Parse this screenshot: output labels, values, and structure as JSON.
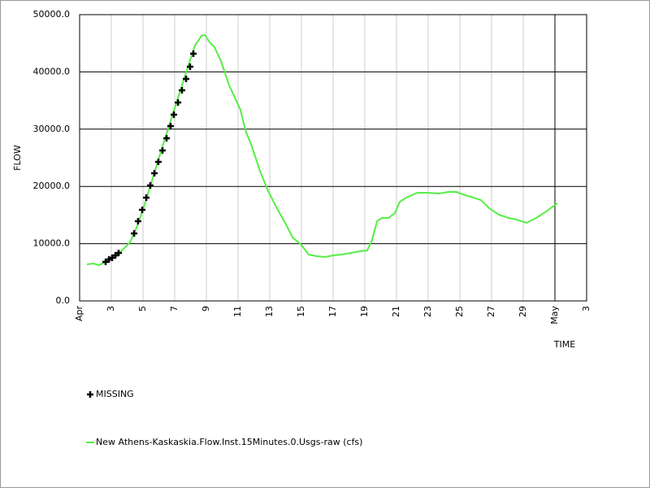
{
  "chart_data": {
    "type": "line",
    "y_label": "FLOW",
    "x_label": "TIME",
    "xlim": [
      1,
      33
    ],
    "xticks": [
      {
        "value": 1,
        "label": "Apr"
      },
      3,
      5,
      7,
      9,
      11,
      13,
      15,
      17,
      19,
      21,
      23,
      25,
      27,
      29,
      {
        "value": 31,
        "label": "May"
      },
      {
        "value": 33,
        "label": "3"
      }
    ],
    "ylim": [
      0,
      50000
    ],
    "yticks": [
      {
        "value": 0,
        "label": "0.0"
      },
      {
        "value": 10000,
        "label": "10000.0"
      },
      {
        "value": 20000,
        "label": "20000.0"
      },
      {
        "value": 30000,
        "label": "30000.0"
      },
      {
        "value": 40000,
        "label": "40000.0"
      },
      {
        "value": 50000,
        "label": "50000.0"
      }
    ],
    "grid": true,
    "series": [
      {
        "name": "MISSING",
        "type": "scatter",
        "color": "#000000",
        "x": [
          2.64,
          2.85,
          3.05,
          3.26,
          3.46,
          4.44,
          4.69,
          4.95,
          5.21,
          5.46,
          5.72,
          5.97,
          6.23,
          6.49,
          6.74,
          6.95,
          7.21,
          7.46,
          7.72,
          7.97,
          8.18
        ],
        "values": [
          6820,
          7240,
          7530,
          7950,
          8380,
          11790,
          13920,
          15910,
          18040,
          20170,
          22300,
          24290,
          26280,
          28410,
          30540,
          32530,
          34660,
          36790,
          38780,
          40910,
          43180
        ]
      },
      {
        "name": "New Athens-Kaskaskia.Flow.Inst.15Minutes.0.Usgs-raw (cfs)",
        "type": "line",
        "color": "#55ee44",
        "x": [
          1.46,
          1.87,
          2.23,
          2.64,
          3.15,
          3.67,
          4.18,
          4.59,
          5.0,
          5.41,
          5.82,
          6.23,
          6.64,
          7.05,
          7.46,
          7.87,
          8.28,
          8.69,
          8.9,
          9.21,
          9.51,
          9.92,
          10.44,
          11.15,
          11.46,
          11.87,
          12.38,
          12.9,
          13.51,
          14.03,
          14.44,
          14.95,
          15.46,
          15.97,
          16.49,
          17.0,
          17.51,
          18.13,
          18.64,
          19.15,
          19.46,
          19.77,
          20.08,
          20.49,
          20.9,
          21.21,
          21.72,
          22.33,
          22.95,
          23.67,
          24.28,
          24.79,
          25.31,
          25.72,
          26.33,
          26.85,
          27.46,
          28.08,
          28.59,
          29.21,
          29.82,
          30.44,
          31.15
        ],
        "values": [
          6390,
          6530,
          6250,
          6820,
          7670,
          8800,
          10230,
          12780,
          15910,
          19600,
          23300,
          26990,
          30540,
          34090,
          37640,
          41190,
          44600,
          46310,
          46450,
          45170,
          44320,
          41900,
          37640,
          33380,
          29830,
          26990,
          22730,
          19180,
          15910,
          13350,
          11080,
          9940,
          8100,
          7810,
          7670,
          7950,
          8100,
          8380,
          8660,
          8800,
          10650,
          13920,
          14490,
          14490,
          15340,
          17330,
          18180,
          18890,
          18890,
          18750,
          19030,
          19030,
          18470,
          18180,
          17610,
          16190,
          15060,
          14490,
          14200,
          13640,
          14490,
          15620,
          17050
        ]
      }
    ]
  }
}
